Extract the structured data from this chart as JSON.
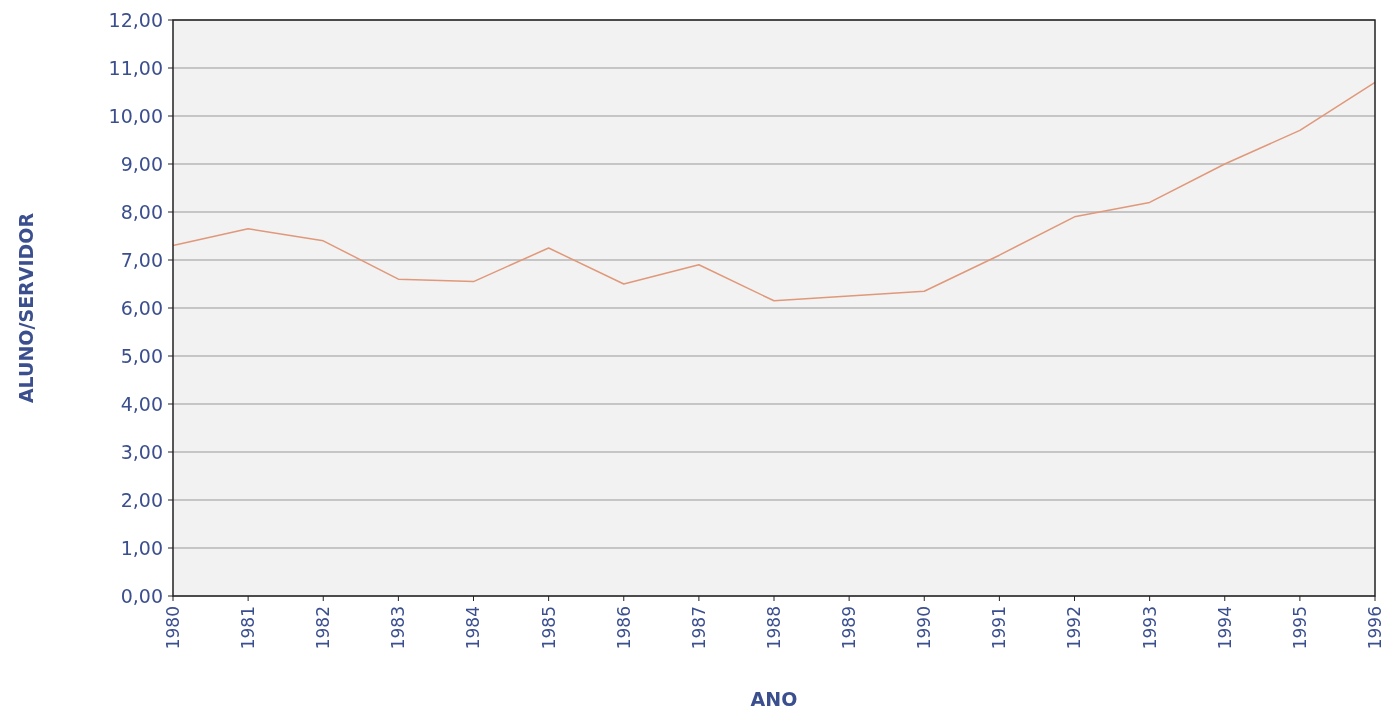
{
  "chart_data": {
    "type": "line",
    "xlabel": "ANO",
    "ylabel": "ALUNO/SERVIDOR",
    "categories": [
      "1980",
      "1981",
      "1982",
      "1983",
      "1984",
      "1985",
      "1986",
      "1987",
      "1988",
      "1989",
      "1990",
      "1991",
      "1992",
      "1993",
      "1994",
      "1995",
      "1996"
    ],
    "series": [
      {
        "color": "#e0987a",
        "values": [
          7.3,
          7.65,
          7.4,
          6.6,
          6.55,
          7.25,
          6.5,
          6.9,
          6.15,
          6.25,
          6.35,
          7.1,
          7.9,
          8.2,
          9.0,
          9.7,
          10.7
        ]
      }
    ],
    "ylim": [
      0,
      12
    ],
    "yticks": [
      {
        "value": 0,
        "label": "0,00"
      },
      {
        "value": 1,
        "label": "1,00"
      },
      {
        "value": 2,
        "label": "2,00"
      },
      {
        "value": 3,
        "label": "3,00"
      },
      {
        "value": 4,
        "label": "4,00"
      },
      {
        "value": 5,
        "label": "5,00"
      },
      {
        "value": 6,
        "label": "6,00"
      },
      {
        "value": 7,
        "label": "7,00"
      },
      {
        "value": 8,
        "label": "8,00"
      },
      {
        "value": 9,
        "label": "9,00"
      },
      {
        "value": 10,
        "label": "10,00"
      },
      {
        "value": 11,
        "label": "11,00"
      },
      {
        "value": 12,
        "label": "12,00"
      }
    ],
    "grid": "y",
    "marker": "none",
    "line_style": "solid"
  }
}
